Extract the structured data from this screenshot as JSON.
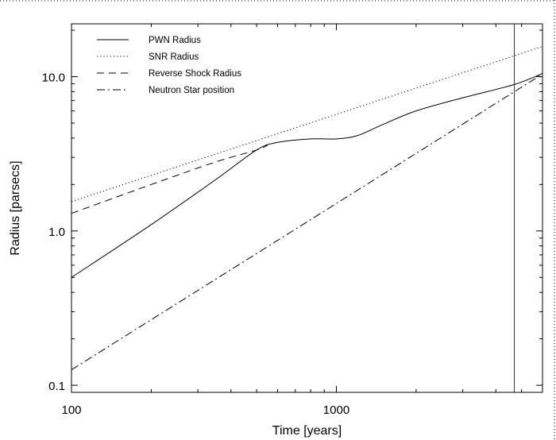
{
  "chart_data": {
    "type": "line",
    "xlabel": "Time [years]",
    "ylabel": "Radius [parsecs]",
    "x_scale": "log",
    "y_scale": "log",
    "xlim": [
      100,
      6000
    ],
    "ylim": [
      0.09,
      22
    ],
    "x_ticks": [
      {
        "value": 100,
        "label": "100"
      },
      {
        "value": 1000,
        "label": "1000"
      }
    ],
    "y_ticks": [
      {
        "value": 0.1,
        "label": "0.1"
      },
      {
        "value": 1.0,
        "label": "1.0"
      },
      {
        "value": 10.0,
        "label": "10.0"
      }
    ],
    "vertical_line_x": 4700,
    "legend_position": "top-left",
    "series": [
      {
        "name": "PWN Radius",
        "style": "solid",
        "x": [
          100,
          200,
          350,
          500,
          600,
          800,
          1000,
          1200,
          1500,
          2000,
          3000,
          4700,
          6000
        ],
        "y": [
          0.5,
          1.1,
          2.15,
          3.35,
          3.75,
          3.95,
          3.95,
          4.15,
          4.9,
          6.0,
          7.3,
          8.9,
          10.5
        ]
      },
      {
        "name": "SNR Radius",
        "style": "dotted",
        "x": [
          100,
          6000
        ],
        "y": [
          1.55,
          15.7
        ]
      },
      {
        "name": "Reverse Shock Radius",
        "style": "dashed",
        "x": [
          100,
          200,
          350,
          500,
          550
        ],
        "y": [
          1.3,
          2.0,
          2.8,
          3.35,
          3.6
        ]
      },
      {
        "name": "Neutron Star position",
        "style": "dashdot",
        "x": [
          100,
          6000
        ],
        "y": [
          0.126,
          10.4
        ]
      }
    ]
  }
}
